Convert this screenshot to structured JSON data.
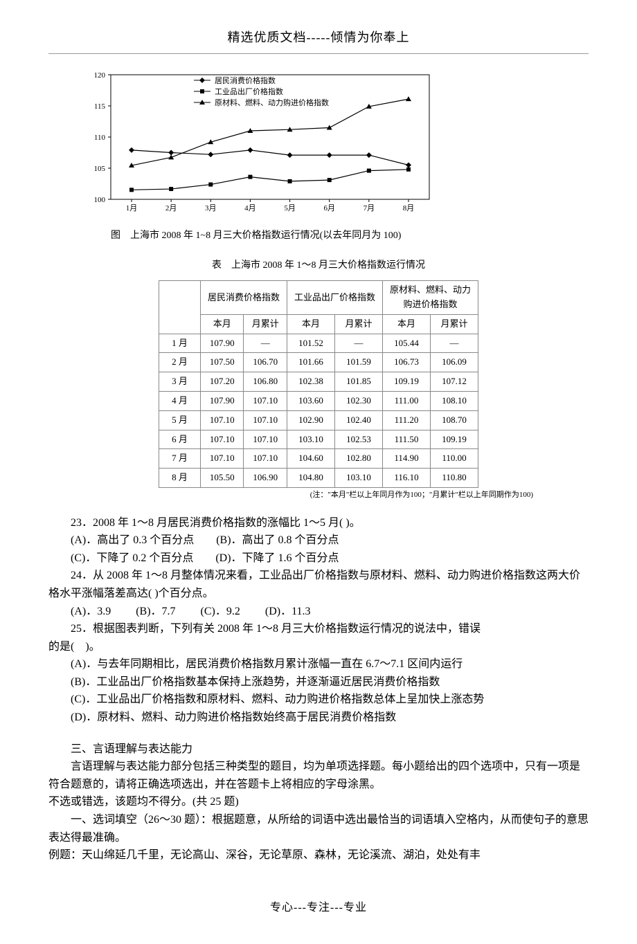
{
  "header_text": "精选优质文档-----倾情为你奉上",
  "chart": {
    "type": "line",
    "legend": [
      "居民消费价格指数",
      "工业品出厂价格指数",
      "原材料、燃料、动力购进价格指数"
    ],
    "x_labels": [
      "1月",
      "2月",
      "3月",
      "4月",
      "5月",
      "6月",
      "7月",
      "8月"
    ],
    "ylim": [
      100,
      120
    ],
    "ytick_step": 5,
    "yticks": [
      "100",
      "105",
      "110",
      "115",
      "120"
    ],
    "series": [
      {
        "name": "居民消费价格指数",
        "marker": "diamond",
        "values": [
          107.9,
          107.5,
          107.2,
          107.9,
          107.1,
          107.1,
          107.1,
          105.5
        ],
        "color": "#000000"
      },
      {
        "name": "工业品出厂价格指数",
        "marker": "square",
        "values": [
          101.52,
          101.66,
          102.38,
          103.6,
          102.9,
          103.1,
          104.6,
          104.8
        ],
        "color": "#000000"
      },
      {
        "name": "原材料、燃料、动力购进价格指数",
        "marker": "triangle",
        "values": [
          105.44,
          106.73,
          109.19,
          111.0,
          111.2,
          111.5,
          114.9,
          116.1
        ],
        "color": "#000000"
      }
    ],
    "background_color": "#ffffff",
    "axis_color": "#000000",
    "label_fontsize": 12,
    "caption": "图　上海市 2008 年 1~8 月三大价格指数运行情况(以去年同月为 100)"
  },
  "table": {
    "type": "table",
    "title": "表　上海市 2008 年 1～8 月三大价格指数运行情况",
    "group_headers": [
      "",
      "居民消费价格指数",
      "工业品出厂价格指数",
      "原材料、燃料、动力\n购进价格指数"
    ],
    "sub_headers": [
      "",
      "本月",
      "月累计",
      "本月",
      "月累计",
      "本月",
      "月累计"
    ],
    "rows": [
      [
        "1 月",
        "107.90",
        "—",
        "101.52",
        "—",
        "105.44",
        "—"
      ],
      [
        "2 月",
        "107.50",
        "106.70",
        "101.66",
        "101.59",
        "106.73",
        "106.09"
      ],
      [
        "3 月",
        "107.20",
        "106.80",
        "102.38",
        "101.85",
        "109.19",
        "107.12"
      ],
      [
        "4 月",
        "107.90",
        "107.10",
        "103.60",
        "102.30",
        "111.00",
        "108.10"
      ],
      [
        "5 月",
        "107.10",
        "107.10",
        "102.90",
        "102.40",
        "111.20",
        "108.70"
      ],
      [
        "6 月",
        "107.10",
        "107.10",
        "103.10",
        "102.53",
        "111.50",
        "109.19"
      ],
      [
        "7 月",
        "107.10",
        "107.10",
        "104.60",
        "102.80",
        "114.90",
        "110.00"
      ],
      [
        "8 月",
        "105.50",
        "106.90",
        "104.80",
        "103.10",
        "116.10",
        "110.80"
      ]
    ],
    "note": "(注：\"本月\"栏以上年同月作为100；\"月累计\"栏以上年同期作为100)",
    "border_color": "#888888",
    "font_size": 13
  },
  "questions": {
    "q23": {
      "stem": "23．2008 年 1～8 月居民消费价格指数的涨幅比 1～5 月( )。",
      "opts_line1": "(A)．高出了 0.3 个百分点　　(B)．高出了 0.8 个百分点",
      "opts_line2": "(C)．下降了 0.2 个百分点　　(D)．下降了 1.6 个百分点"
    },
    "q24": {
      "stem": "24．从 2008 年 1～8 月整体情况来看，工业品出厂价格指数与原材料、燃料、动力购进价格指数这两大价格水平涨幅落差高达( )个百分点。",
      "opts": "(A)．3.9　　 (B)．7.7　　 (C)．9.2　　 (D)．11.3"
    },
    "q25": {
      "stem1": "25．根据图表判断，下列有关 2008 年 1～8 月三大价格指数运行情况的说法中，错误",
      "stem2": "的是(　)。",
      "a": "(A)．与去年同期相比，居民消费价格指数月累计涨幅一直在 6.7～7.1 区间内运行",
      "b": "(B)．工业品出厂价格指数基本保持上涨趋势，并逐渐逼近居民消费价格指数",
      "c": "(C)．工业品出厂价格指数和原材料、燃料、动力购进价格指数总体上呈加快上涨态势",
      "d": "(D)．原材料、燃料、动力购进价格指数始终高于居民消费价格指数"
    }
  },
  "section3": {
    "title": "三、言语理解与表达能力",
    "intro1": "言语理解与表达能力部分包括三种类型的题目，均为单项选择题。每小题给出的四个选项中，只有一项是符合题意的，请将正确选项选出，并在答题卡上将相应的字母涂黑。",
    "intro2": "不选或错选，该题均不得分。(共 25 题)",
    "sub1": "一、选词填空（26～30 题）：根据题意，从所给的词语中选出最恰当的词语填入空格内，从而使句子的意思表达得最准确。",
    "example": "例题：天山绵延几千里，无论高山、深谷，无论草原、森林，无论溪流、湖泊，处处有丰"
  },
  "footer_text": "专心---专注---专业"
}
